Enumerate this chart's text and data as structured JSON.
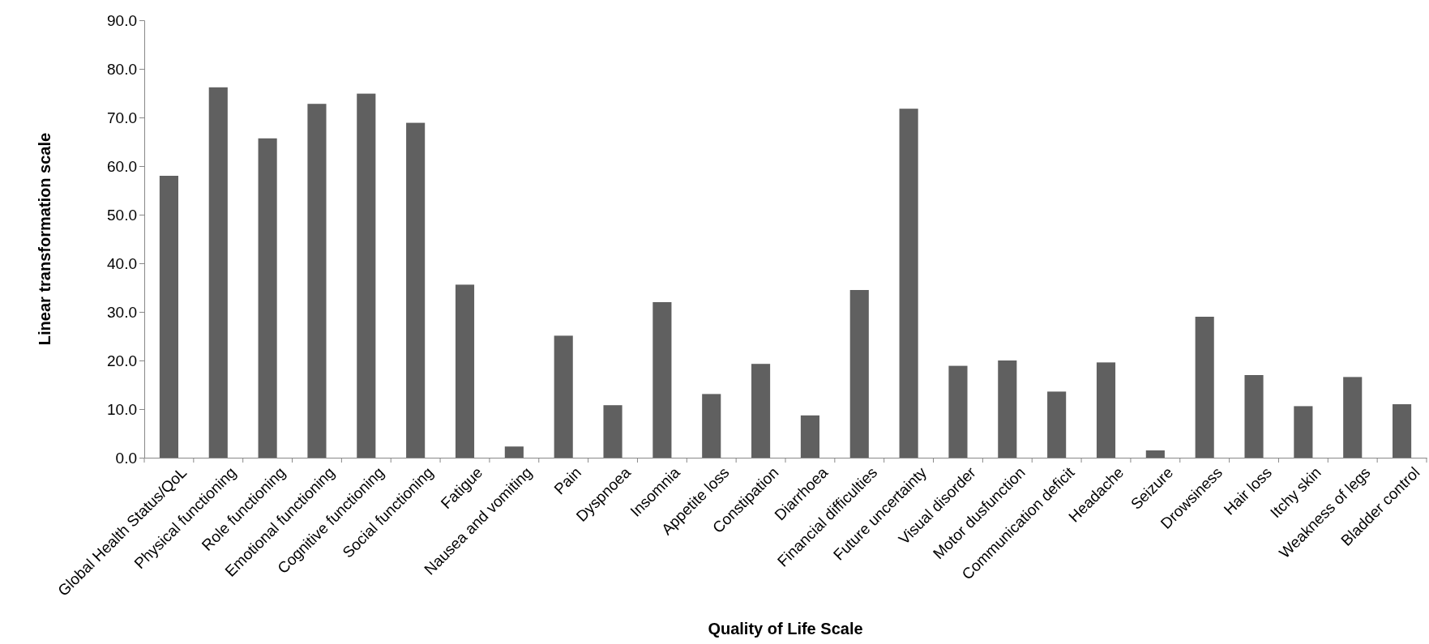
{
  "chart_data": {
    "type": "bar",
    "xlabel": "Quality of Life Scale",
    "ylabel": "Linear transformation scale",
    "categories": [
      "Global Health Status/QoL",
      "Physical functioning",
      "Role functioning",
      "Emotional functioning",
      "Cognitive functioning",
      "Social functioning",
      "Fatigue",
      "Nausea and vomiting",
      "Pain",
      "Dyspnoea",
      "Insomnia",
      "Appetite loss",
      "Constipation",
      "Diarrhoea",
      "Financial difficulties",
      "Future uncertainty",
      "Visual disorder",
      "Motor dusfunction",
      "Communication deficit",
      "Headache",
      "Seizure",
      "Drowsiness",
      "Hair loss",
      "Itchy skin",
      "Weakness of legs",
      "Bladder control"
    ],
    "values": [
      58.0,
      76.2,
      65.7,
      72.8,
      74.9,
      68.9,
      35.6,
      2.3,
      25.1,
      10.8,
      32.0,
      13.1,
      19.3,
      8.7,
      34.5,
      71.8,
      18.9,
      20.0,
      13.6,
      19.6,
      1.5,
      29.0,
      17.0,
      10.6,
      16.6,
      11.0
    ],
    "color": "#606060",
    "ylim": [
      0,
      90
    ],
    "yticks": [
      {
        "value": 0,
        "label": "0.0"
      },
      {
        "value": 10,
        "label": "10.0"
      },
      {
        "value": 20,
        "label": "20.0"
      },
      {
        "value": 30,
        "label": "30.0"
      },
      {
        "value": 40,
        "label": "40.0"
      },
      {
        "value": 50,
        "label": "50.0"
      },
      {
        "value": 60,
        "label": "60.0"
      },
      {
        "value": 70,
        "label": "70.0"
      },
      {
        "value": 80,
        "label": "80.0"
      },
      {
        "value": 90,
        "label": "90.0"
      }
    ],
    "grid": false
  }
}
